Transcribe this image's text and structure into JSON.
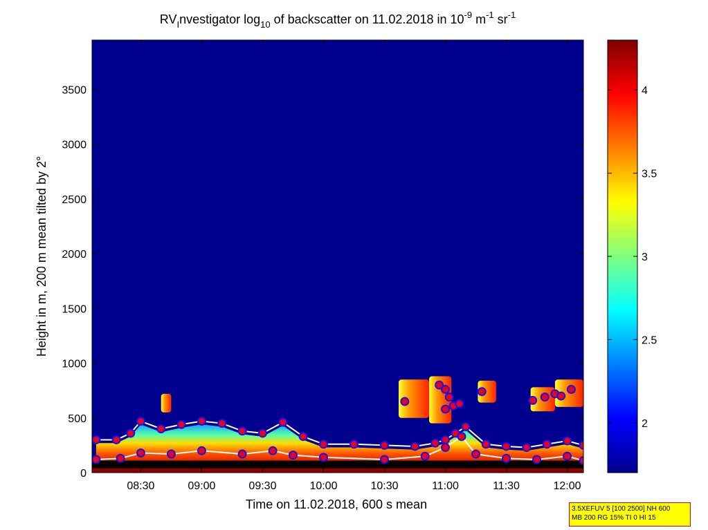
{
  "chart_data": {
    "type": "heatmap",
    "title": {
      "part1": "RV",
      "part1_sub": "I",
      "part2": "nvestigator log",
      "part2_sub": "10",
      "part3": " of backscatter on 11.02.2018 in 10",
      "exp1": "-9",
      "part4": " m",
      "exp2": "-1",
      "part5": " sr",
      "exp3": "-1"
    },
    "xlabel": "Time on 11.02.2018, 600 s mean",
    "ylabel": "Height in m, 200 m mean tilted by 2°",
    "x_range": [
      "08:06",
      "12:08"
    ],
    "x_ticks": [
      "08:30",
      "09:00",
      "09:30",
      "10:00",
      "10:30",
      "11:00",
      "11:30",
      "12:00"
    ],
    "y_range": [
      0,
      3950
    ],
    "y_ticks": [
      0,
      500,
      1000,
      1500,
      2000,
      2500,
      3000,
      3500
    ],
    "colorbar": {
      "range": [
        1.7,
        4.3
      ],
      "ticks": [
        "2",
        "2.5",
        "3",
        "3.5",
        "4"
      ],
      "colormap": "jet"
    },
    "colors": {
      "background": "#00008f",
      "near_surface": "#8b0000",
      "marker_fill": "#e8001e",
      "marker_edge": "#1414e6",
      "line": "#ffffff",
      "ground": "#000000"
    },
    "boundary_layer_top": [
      {
        "t": "08:08",
        "h": 300
      },
      {
        "t": "08:18",
        "h": 300
      },
      {
        "t": "08:25",
        "h": 360
      },
      {
        "t": "08:30",
        "h": 470
      },
      {
        "t": "08:40",
        "h": 400
      },
      {
        "t": "08:50",
        "h": 440
      },
      {
        "t": "09:00",
        "h": 470
      },
      {
        "t": "09:10",
        "h": 450
      },
      {
        "t": "09:20",
        "h": 380
      },
      {
        "t": "09:30",
        "h": 360
      },
      {
        "t": "09:40",
        "h": 460
      },
      {
        "t": "09:50",
        "h": 330
      },
      {
        "t": "10:00",
        "h": 260
      },
      {
        "t": "10:15",
        "h": 260
      },
      {
        "t": "10:30",
        "h": 250
      },
      {
        "t": "10:45",
        "h": 240
      },
      {
        "t": "10:55",
        "h": 270
      },
      {
        "t": "11:00",
        "h": 300
      },
      {
        "t": "11:05",
        "h": 360
      },
      {
        "t": "11:10",
        "h": 420
      },
      {
        "t": "11:20",
        "h": 260
      },
      {
        "t": "11:30",
        "h": 240
      },
      {
        "t": "11:40",
        "h": 230
      },
      {
        "t": "11:50",
        "h": 260
      },
      {
        "t": "12:00",
        "h": 290
      },
      {
        "t": "12:08",
        "h": 250
      }
    ],
    "mid_layer": [
      {
        "t": "08:08",
        "h": 120
      },
      {
        "t": "08:20",
        "h": 130
      },
      {
        "t": "08:30",
        "h": 180
      },
      {
        "t": "08:45",
        "h": 170
      },
      {
        "t": "09:00",
        "h": 200
      },
      {
        "t": "09:20",
        "h": 170
      },
      {
        "t": "09:35",
        "h": 200
      },
      {
        "t": "09:45",
        "h": 160
      },
      {
        "t": "10:00",
        "h": 140
      },
      {
        "t": "10:30",
        "h": 120
      },
      {
        "t": "10:50",
        "h": 150
      },
      {
        "t": "11:00",
        "h": 230
      },
      {
        "t": "11:08",
        "h": 330
      },
      {
        "t": "11:15",
        "h": 170
      },
      {
        "t": "11:30",
        "h": 130
      },
      {
        "t": "11:45",
        "h": 120
      },
      {
        "t": "12:00",
        "h": 150
      },
      {
        "t": "12:08",
        "h": 110
      }
    ],
    "cloud_markers": [
      {
        "t": "10:40",
        "h": 650
      },
      {
        "t": "10:57",
        "h": 800
      },
      {
        "t": "11:00",
        "h": 760
      },
      {
        "t": "11:02",
        "h": 690
      },
      {
        "t": "11:04",
        "h": 610
      },
      {
        "t": "11:00",
        "h": 580
      },
      {
        "t": "11:07",
        "h": 630
      },
      {
        "t": "11:18",
        "h": 740
      },
      {
        "t": "11:43",
        "h": 660
      },
      {
        "t": "11:49",
        "h": 690
      },
      {
        "t": "11:54",
        "h": 720
      },
      {
        "t": "11:57",
        "h": 700
      },
      {
        "t": "12:02",
        "h": 760
      }
    ],
    "cloud_patches": [
      {
        "t0": "08:40",
        "t1": "08:45",
        "h0": 550,
        "h1": 720
      },
      {
        "t0": "10:37",
        "t1": "10:52",
        "h0": 500,
        "h1": 850
      },
      {
        "t0": "10:52",
        "t1": "11:03",
        "h0": 450,
        "h1": 880
      },
      {
        "t0": "11:16",
        "t1": "11:25",
        "h0": 640,
        "h1": 840
      },
      {
        "t0": "11:42",
        "t1": "11:54",
        "h0": 560,
        "h1": 780
      },
      {
        "t0": "11:54",
        "t1": "12:08",
        "h0": 600,
        "h1": 850
      }
    ]
  },
  "info_box": {
    "line1": "3.5XEFUV 5 [100 2500] NH 600",
    "line2": "MB 200 RG 15% TI 0 HI 15"
  }
}
